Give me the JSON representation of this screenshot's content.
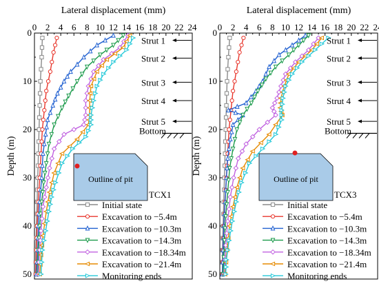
{
  "chart_data": [
    {
      "type": "line",
      "panel": "TCX1",
      "xlabel": "Lateral displacement (mm)",
      "ylabel": "Depth (m)",
      "xlim": [
        0,
        24
      ],
      "ylim": [
        0,
        51
      ],
      "x_ticks": [
        "0",
        "2",
        "4",
        "6",
        "8",
        "10",
        "12",
        "14",
        "16",
        "18",
        "20",
        "22",
        "24"
      ],
      "y_ticks": [
        "0",
        "10",
        "20",
        "30",
        "40",
        "50"
      ],
      "grid": false,
      "legend_position": "bottom-right",
      "struts": [
        {
          "label": "Strut 1",
          "depth": 1.5
        },
        {
          "label": "Strut 2",
          "depth": 5.2
        },
        {
          "label": "Strut 3",
          "depth": 10.2
        },
        {
          "label": "Strut 4",
          "depth": 14
        },
        {
          "label": "Strut 5",
          "depth": 18.3
        }
      ],
      "bottom_label": "Bottom",
      "bottom_depth": 21.5,
      "inset_label": "Outline of pit",
      "station_label": "TCX1",
      "series": [
        {
          "name": "Initial state",
          "color": "#8a8a8a",
          "marker": "square",
          "points": [
            [
              1.2,
              1
            ],
            [
              1.1,
              5
            ],
            [
              0.9,
              10
            ],
            [
              0.8,
              15
            ],
            [
              0.7,
              20
            ],
            [
              0.6,
              25
            ],
            [
              0.5,
              30
            ],
            [
              0.4,
              35
            ],
            [
              0.3,
              40
            ],
            [
              0.2,
              45
            ],
            [
              0.2,
              50
            ]
          ]
        },
        {
          "name": "Excavation to −5.4m",
          "color": "#e8362c",
          "marker": "circle",
          "points": [
            [
              3.4,
              1
            ],
            [
              2.9,
              4
            ],
            [
              2.4,
              8
            ],
            [
              1.8,
              12
            ],
            [
              1.5,
              16
            ],
            [
              1.2,
              20
            ],
            [
              1,
              25
            ],
            [
              0.8,
              30
            ],
            [
              0.6,
              35
            ],
            [
              0.4,
              40
            ],
            [
              0.3,
              45
            ],
            [
              0.2,
              50
            ]
          ]
        },
        {
          "name": "Excavation to −10.3m",
          "color": "#1f5fd0",
          "marker": "triangle-up",
          "points": [
            [
              12,
              0.5
            ],
            [
              9.5,
              2.5
            ],
            [
              7.5,
              5
            ],
            [
              5.5,
              8
            ],
            [
              4.5,
              10
            ],
            [
              3.5,
              12.5
            ],
            [
              2.8,
              15
            ],
            [
              2,
              18
            ],
            [
              1.7,
              21
            ],
            [
              1.3,
              25
            ],
            [
              1.1,
              30
            ],
            [
              0.8,
              35
            ],
            [
              0.6,
              40
            ],
            [
              0.5,
              45
            ],
            [
              0.3,
              50
            ]
          ]
        },
        {
          "name": "Excavation to −14.3m",
          "color": "#1a9a4a",
          "marker": "triangle-down",
          "points": [
            [
              13.5,
              0.5
            ],
            [
              12,
              2.5
            ],
            [
              10,
              4.5
            ],
            [
              8,
              7
            ],
            [
              6.5,
              10
            ],
            [
              5.2,
              13
            ],
            [
              4.2,
              15.5
            ],
            [
              3,
              19
            ],
            [
              2.2,
              23
            ],
            [
              1.8,
              27
            ],
            [
              1.4,
              31
            ],
            [
              1.1,
              35
            ],
            [
              0.8,
              40
            ],
            [
              0.6,
              45
            ],
            [
              0.5,
              50
            ]
          ]
        },
        {
          "name": "Excavation to −18.34m",
          "color": "#c060e0",
          "marker": "diamond",
          "points": [
            [
              14.2,
              0.5
            ],
            [
              13,
              3
            ],
            [
              10.5,
              5.5
            ],
            [
              9,
              8
            ],
            [
              8.2,
              11
            ],
            [
              7.8,
              14
            ],
            [
              7.8,
              17
            ],
            [
              7.5,
              19
            ],
            [
              4.5,
              21
            ],
            [
              3,
              24
            ],
            [
              2.3,
              28
            ],
            [
              1.8,
              32
            ],
            [
              1.3,
              36
            ],
            [
              1,
              41
            ],
            [
              0.8,
              45
            ],
            [
              0.6,
              50
            ]
          ]
        },
        {
          "name": "Excavation to −21.4m",
          "color": "#e68a00",
          "marker": "triangle-left",
          "points": [
            [
              14.5,
              0.5
            ],
            [
              13.5,
              3
            ],
            [
              11,
              5.5
            ],
            [
              9.5,
              8
            ],
            [
              8.6,
              11
            ],
            [
              8.4,
              14
            ],
            [
              8.4,
              17
            ],
            [
              8.2,
              19
            ],
            [
              6.5,
              22
            ],
            [
              4.2,
              25
            ],
            [
              3,
              29
            ],
            [
              2.3,
              33
            ],
            [
              1.8,
              37
            ],
            [
              1.3,
              42
            ],
            [
              1,
              46
            ],
            [
              0.8,
              50
            ]
          ]
        },
        {
          "name": "Monitoring ends",
          "color": "#22c8d8",
          "marker": "triangle-right",
          "points": [
            [
              15,
              1
            ],
            [
              14,
              3.5
            ],
            [
              12,
              6
            ],
            [
              10.5,
              8.5
            ],
            [
              9.5,
              11
            ],
            [
              9,
              14
            ],
            [
              8.6,
              17
            ],
            [
              8.6,
              19
            ],
            [
              7.8,
              21.5
            ],
            [
              5.8,
              24
            ],
            [
              4.2,
              27
            ],
            [
              3.2,
              31
            ],
            [
              2.6,
              34
            ],
            [
              2.2,
              37
            ],
            [
              1.7,
              41
            ],
            [
              1.2,
              45
            ],
            [
              1,
              50
            ]
          ]
        }
      ]
    },
    {
      "type": "line",
      "panel": "TCX3",
      "xlabel": "Lateral displacement (mm)",
      "ylabel": "Depth (m)",
      "xlim": [
        0,
        24
      ],
      "ylim": [
        0,
        51
      ],
      "x_ticks": [
        "0",
        "2",
        "4",
        "6",
        "8",
        "10",
        "12",
        "14",
        "16",
        "18",
        "20",
        "22",
        "24"
      ],
      "y_ticks": [
        "0",
        "10",
        "20",
        "30",
        "40",
        "50"
      ],
      "grid": false,
      "legend_position": "bottom-right",
      "struts": [
        {
          "label": "Strut 1",
          "depth": 1.5
        },
        {
          "label": "Strut 2",
          "depth": 5.2
        },
        {
          "label": "Strut 3",
          "depth": 10.2
        },
        {
          "label": "Strut 4",
          "depth": 14
        },
        {
          "label": "Strut 5",
          "depth": 18.3
        }
      ],
      "bottom_label": "Bottom",
      "bottom_depth": 21.5,
      "inset_label": "Outline of pit",
      "station_label": "TCX3",
      "series": [
        {
          "name": "Initial state",
          "color": "#8a8a8a",
          "marker": "square",
          "points": [
            [
              1.5,
              1
            ],
            [
              1.3,
              5
            ],
            [
              1.1,
              10
            ],
            [
              1,
              15
            ],
            [
              0.9,
              20
            ],
            [
              0.8,
              25
            ],
            [
              0.7,
              30
            ],
            [
              0.6,
              35
            ],
            [
              0.5,
              40
            ],
            [
              0.4,
              45
            ],
            [
              0.4,
              50
            ]
          ]
        },
        {
          "name": "Excavation to −5.4m",
          "color": "#e8362c",
          "marker": "circle",
          "points": [
            [
              3.6,
              1
            ],
            [
              3,
              4
            ],
            [
              2.5,
              8
            ],
            [
              2,
              12
            ],
            [
              1.7,
              16
            ],
            [
              1.4,
              20
            ],
            [
              1.2,
              25
            ],
            [
              1,
              30
            ],
            [
              0.8,
              35
            ],
            [
              0.6,
              40
            ],
            [
              0.5,
              45
            ],
            [
              0.4,
              50
            ]
          ]
        },
        {
          "name": "Excavation to −10.3m",
          "color": "#1f5fd0",
          "marker": "triangle-up",
          "points": [
            [
              13,
              0.5
            ],
            [
              11,
              2.5
            ],
            [
              9,
              4.5
            ],
            [
              7.5,
              7
            ],
            [
              6.5,
              10
            ],
            [
              5.5,
              12
            ],
            [
              4,
              14.5
            ],
            [
              1.3,
              16
            ],
            [
              3.5,
              17
            ],
            [
              2,
              19
            ],
            [
              1.6,
              22
            ],
            [
              1.2,
              26
            ],
            [
              1,
              30
            ],
            [
              0.8,
              35
            ],
            [
              0.6,
              40
            ],
            [
              0.5,
              45
            ],
            [
              0.4,
              50
            ]
          ]
        },
        {
          "name": "Excavation to −14.3m",
          "color": "#1a9a4a",
          "marker": "triangle-down",
          "points": [
            [
              13.5,
              0.5
            ],
            [
              12,
              2.5
            ],
            [
              10.5,
              4.5
            ],
            [
              8.5,
              7
            ],
            [
              7,
              9.5
            ],
            [
              5.8,
              12
            ],
            [
              4.8,
              14.5
            ],
            [
              3.5,
              17
            ],
            [
              2.6,
              20
            ],
            [
              2,
              24
            ],
            [
              1.5,
              28
            ],
            [
              1.2,
              33
            ],
            [
              0.9,
              38
            ],
            [
              0.7,
              43
            ],
            [
              0.5,
              50
            ]
          ]
        },
        {
          "name": "Excavation to −18.34m",
          "color": "#c060e0",
          "marker": "diamond",
          "points": [
            [
              15,
              1
            ],
            [
              13.5,
              3.5
            ],
            [
              11.5,
              6
            ],
            [
              10,
              8.5
            ],
            [
              9.3,
              11
            ],
            [
              8.7,
              13.5
            ],
            [
              8,
              15.5
            ],
            [
              8.5,
              17
            ],
            [
              6,
              20
            ],
            [
              4,
              23
            ],
            [
              2.8,
              26
            ],
            [
              2.1,
              30
            ],
            [
              1.6,
              34
            ],
            [
              1.2,
              39
            ],
            [
              0.9,
              44
            ],
            [
              0.7,
              50
            ]
          ]
        },
        {
          "name": "Excavation to −21.4m",
          "color": "#e68a00",
          "marker": "triangle-left",
          "points": [
            [
              15.5,
              1
            ],
            [
              14,
              3.5
            ],
            [
              12,
              6
            ],
            [
              10.5,
              8.5
            ],
            [
              9.8,
              11
            ],
            [
              9.3,
              13.5
            ],
            [
              9.2,
              15.5
            ],
            [
              9.5,
              17
            ],
            [
              7.5,
              21
            ],
            [
              5,
              24.5
            ],
            [
              3.5,
              28
            ],
            [
              2.6,
              32
            ],
            [
              2,
              36
            ],
            [
              1.5,
              40
            ],
            [
              1.1,
              45
            ],
            [
              0.8,
              50
            ]
          ]
        },
        {
          "name": "Monitoring ends",
          "color": "#22c8d8",
          "marker": "triangle-right",
          "points": [
            [
              16.5,
              1
            ],
            [
              14.5,
              3.5
            ],
            [
              12.5,
              6
            ],
            [
              11,
              8.5
            ],
            [
              10,
              11
            ],
            [
              9.6,
              13.5
            ],
            [
              9.4,
              16
            ],
            [
              9.4,
              18
            ],
            [
              8.5,
              21
            ],
            [
              6.5,
              24
            ],
            [
              4.5,
              27
            ],
            [
              3.3,
              31
            ],
            [
              2.5,
              35
            ],
            [
              1.9,
              39
            ],
            [
              1.4,
              43
            ],
            [
              1,
              47
            ],
            [
              0.9,
              50
            ]
          ]
        }
      ]
    }
  ]
}
